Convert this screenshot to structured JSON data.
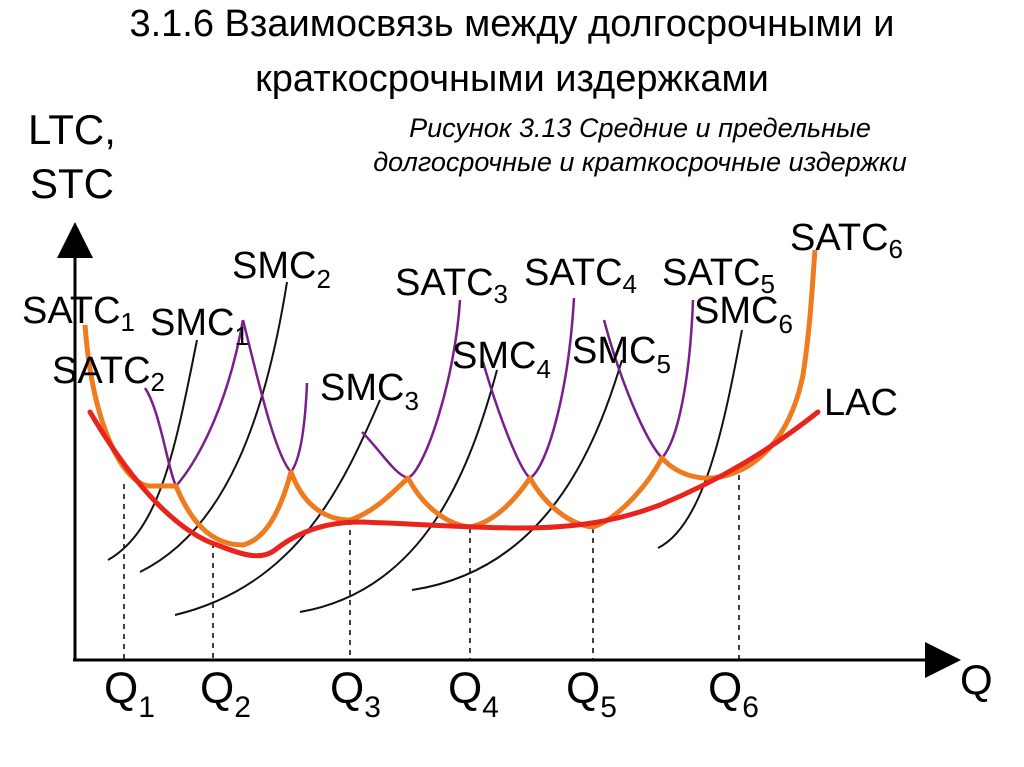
{
  "title": {
    "line1": "3.1.6 Взаимосвязь между долгосрочными и",
    "line2": "краткосрочными издержками"
  },
  "figure_caption": {
    "line1": "Рисунок 3.13 Средние и предельные",
    "line2": "долгосрочные и краткосрочные издержки"
  },
  "axes": {
    "y_label_1": "LTC,",
    "y_label_2": "STC",
    "x_label": "Q"
  },
  "quantities": [
    {
      "name": "Q",
      "sub": "1"
    },
    {
      "name": "Q",
      "sub": "2"
    },
    {
      "name": "Q",
      "sub": "3"
    },
    {
      "name": "Q",
      "sub": "4"
    },
    {
      "name": "Q",
      "sub": "5"
    },
    {
      "name": "Q",
      "sub": "6"
    }
  ],
  "curve_labels": {
    "satc": [
      {
        "name": "SATC",
        "sub": "1"
      },
      {
        "name": "SATC",
        "sub": "2"
      },
      {
        "name": "SATC",
        "sub": "3"
      },
      {
        "name": "SATC",
        "sub": "4"
      },
      {
        "name": "SATC",
        "sub": "5"
      },
      {
        "name": "SATC",
        "sub": "6"
      }
    ],
    "smc": [
      {
        "name": "SMC",
        "sub": "1"
      },
      {
        "name": "SMC",
        "sub": "2"
      },
      {
        "name": "SMC",
        "sub": "3"
      },
      {
        "name": "SMC",
        "sub": "4"
      },
      {
        "name": "SMC",
        "sub": "5"
      },
      {
        "name": "SMC",
        "sub": "6"
      }
    ],
    "lac": "LAC"
  },
  "colors": {
    "lac": "#e8241c",
    "satc_envelope": "#f07a1e",
    "satc": "#7a1e8c",
    "smc": "#111111",
    "axis": "#000000"
  }
}
